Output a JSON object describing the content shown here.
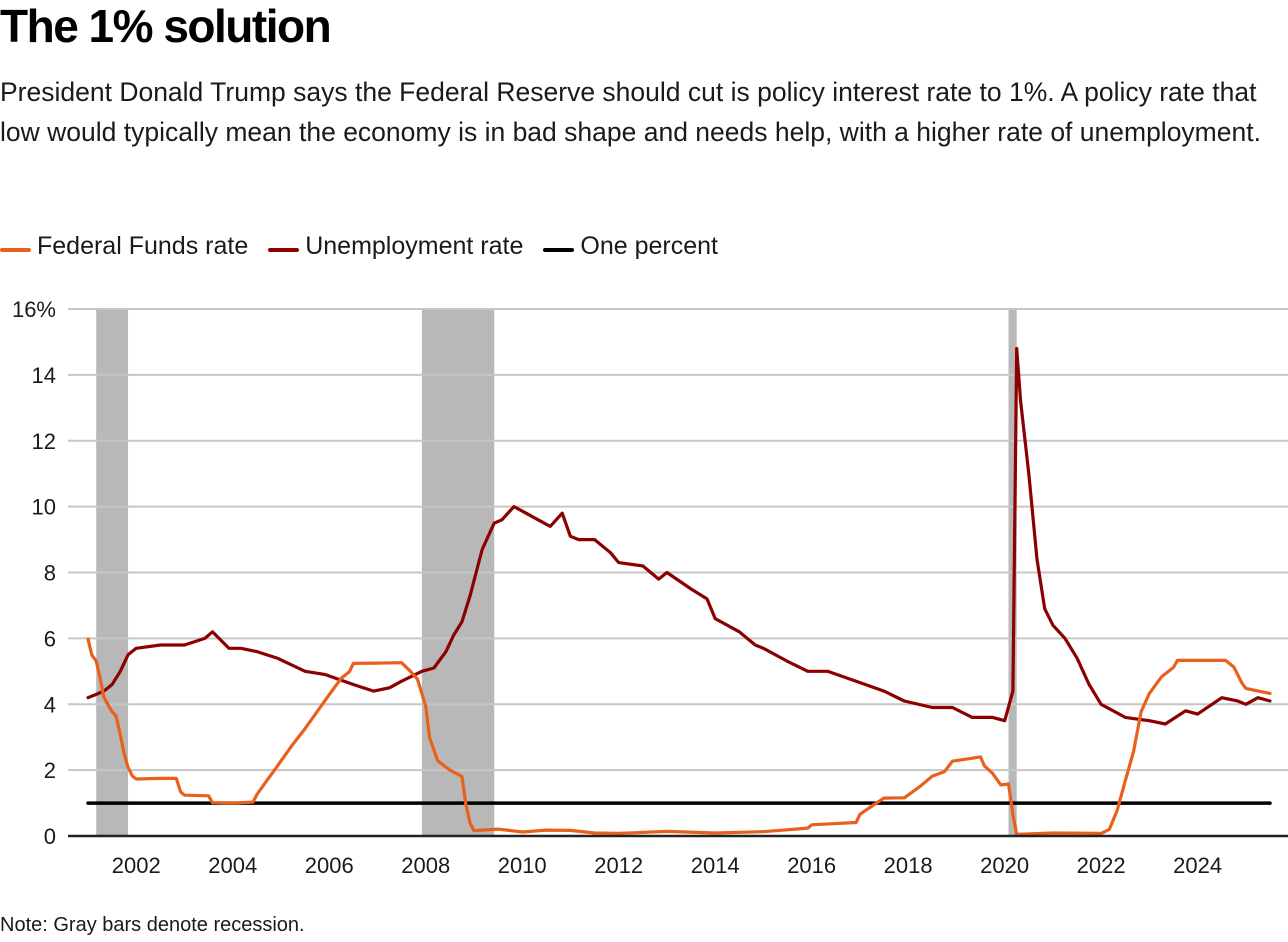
{
  "header": {
    "title": "The 1% solution",
    "subtitle": "President Donald Trump says the Federal Reserve should cut is policy interest rate to 1%. A policy rate that low would typically mean the economy is in bad shape and needs help, with a higher rate of unemployment."
  },
  "legend": [
    {
      "label": "Federal Funds rate",
      "color": "#e8601c"
    },
    {
      "label": "Unemployment rate",
      "color": "#8b0000"
    },
    {
      "label": "One percent",
      "color": "#000000"
    }
  ],
  "note": "Note: Gray bars denote recession.",
  "chart_data": {
    "type": "line",
    "title": "The 1% solution",
    "xlabel": "",
    "ylabel": "",
    "xlim": [
      2001.0,
      2025.5
    ],
    "ylim": [
      0,
      16
    ],
    "yticks": [
      0,
      2,
      4,
      6,
      8,
      10,
      12,
      14,
      16
    ],
    "ytick_labels": [
      "0",
      "2",
      "4",
      "6",
      "8",
      "10",
      "12",
      "14",
      "16%"
    ],
    "xticks": [
      2002,
      2004,
      2006,
      2008,
      2010,
      2012,
      2014,
      2016,
      2018,
      2020,
      2022,
      2024
    ],
    "xtick_labels": [
      "2002",
      "2004",
      "2006",
      "2008",
      "2010",
      "2012",
      "2014",
      "2016",
      "2018",
      "2020",
      "2022",
      "2024"
    ],
    "grid": true,
    "legend_position": "top-left",
    "recessions": [
      {
        "start": 2001.17,
        "end": 2001.83
      },
      {
        "start": 2007.92,
        "end": 2009.42
      },
      {
        "start": 2020.08,
        "end": 2020.25
      }
    ],
    "series": [
      {
        "name": "Federal Funds rate",
        "color": "#e8601c",
        "x": [
          2001.0,
          2001.08,
          2001.17,
          2001.25,
          2001.33,
          2001.42,
          2001.5,
          2001.58,
          2001.67,
          2001.75,
          2001.83,
          2001.92,
          2002.0,
          2002.5,
          2002.83,
          2002.92,
          2003.0,
          2003.5,
          2003.58,
          2004.0,
          2004.42,
          2004.5,
          2004.67,
          2004.83,
          2005.0,
          2005.25,
          2005.5,
          2005.75,
          2006.0,
          2006.25,
          2006.42,
          2006.5,
          2007.0,
          2007.5,
          2007.67,
          2007.83,
          2008.0,
          2008.08,
          2008.25,
          2008.5,
          2008.75,
          2008.83,
          2008.92,
          2009.0,
          2009.5,
          2010.0,
          2010.5,
          2011.0,
          2011.5,
          2012.0,
          2013.0,
          2014.0,
          2015.0,
          2015.92,
          2016.0,
          2016.92,
          2017.0,
          2017.25,
          2017.5,
          2017.92,
          2018.25,
          2018.5,
          2018.75,
          2018.92,
          2019.5,
          2019.58,
          2019.75,
          2019.92,
          2020.08,
          2020.17,
          2020.25,
          2021.0,
          2022.0,
          2022.17,
          2022.33,
          2022.5,
          2022.67,
          2022.83,
          2023.0,
          2023.25,
          2023.5,
          2023.58,
          2024.0,
          2024.58,
          2024.75,
          2024.92,
          2025.0,
          2025.5
        ],
        "values": [
          5.98,
          5.49,
          5.31,
          4.8,
          4.21,
          3.97,
          3.77,
          3.65,
          3.07,
          2.49,
          2.09,
          1.82,
          1.73,
          1.75,
          1.75,
          1.34,
          1.24,
          1.22,
          1.01,
          1.0,
          1.03,
          1.26,
          1.61,
          1.93,
          2.28,
          2.79,
          3.26,
          3.78,
          4.29,
          4.79,
          4.99,
          5.24,
          5.25,
          5.26,
          5.02,
          4.76,
          3.94,
          2.98,
          2.28,
          2.0,
          1.81,
          0.97,
          0.39,
          0.16,
          0.21,
          0.12,
          0.18,
          0.17,
          0.09,
          0.08,
          0.14,
          0.09,
          0.13,
          0.24,
          0.34,
          0.41,
          0.66,
          0.91,
          1.15,
          1.16,
          1.51,
          1.82,
          1.95,
          2.27,
          2.4,
          2.13,
          1.9,
          1.55,
          1.58,
          0.65,
          0.05,
          0.09,
          0.08,
          0.2,
          0.77,
          1.68,
          2.56,
          3.78,
          4.33,
          4.83,
          5.12,
          5.33,
          5.33,
          5.33,
          5.13,
          4.64,
          4.48,
          4.33
        ]
      },
      {
        "name": "Unemployment rate",
        "color": "#8b0000",
        "x": [
          2001.0,
          2001.17,
          2001.33,
          2001.5,
          2001.67,
          2001.83,
          2002.0,
          2002.5,
          2003.0,
          2003.42,
          2003.58,
          2003.92,
          2004.17,
          2004.5,
          2004.92,
          2005.5,
          2005.92,
          2006.5,
          2006.92,
          2007.25,
          2007.5,
          2007.92,
          2008.17,
          2008.42,
          2008.58,
          2008.75,
          2008.92,
          2009.17,
          2009.42,
          2009.58,
          2009.83,
          2010.08,
          2010.33,
          2010.58,
          2010.83,
          2011.0,
          2011.17,
          2011.5,
          2011.83,
          2012.0,
          2012.5,
          2012.83,
          2013.0,
          2013.5,
          2013.83,
          2014.0,
          2014.5,
          2014.83,
          2015.0,
          2015.5,
          2015.92,
          2016.33,
          2016.92,
          2017.5,
          2017.92,
          2018.5,
          2018.92,
          2019.33,
          2019.75,
          2020.0,
          2020.17,
          2020.25,
          2020.33,
          2020.5,
          2020.67,
          2020.83,
          2021.0,
          2021.25,
          2021.5,
          2021.75,
          2022.0,
          2022.5,
          2023.0,
          2023.33,
          2023.75,
          2024.0,
          2024.5,
          2024.83,
          2025.0,
          2025.25,
          2025.5
        ],
        "values": [
          4.2,
          4.3,
          4.4,
          4.6,
          5.0,
          5.5,
          5.7,
          5.8,
          5.8,
          6.0,
          6.2,
          5.7,
          5.7,
          5.6,
          5.4,
          5.0,
          4.9,
          4.6,
          4.4,
          4.5,
          4.7,
          5.0,
          5.1,
          5.6,
          6.1,
          6.5,
          7.3,
          8.7,
          9.5,
          9.6,
          10.0,
          9.8,
          9.6,
          9.4,
          9.8,
          9.1,
          9.0,
          9.0,
          8.6,
          8.3,
          8.2,
          7.8,
          8.0,
          7.5,
          7.2,
          6.6,
          6.2,
          5.8,
          5.7,
          5.3,
          5.0,
          5.0,
          4.7,
          4.4,
          4.1,
          3.9,
          3.9,
          3.6,
          3.6,
          3.5,
          4.4,
          14.8,
          13.2,
          11.0,
          8.4,
          6.9,
          6.4,
          6.0,
          5.4,
          4.6,
          4.0,
          3.6,
          3.5,
          3.4,
          3.8,
          3.7,
          4.2,
          4.1,
          4.0,
          4.2,
          4.1
        ]
      },
      {
        "name": "One percent",
        "color": "#000000",
        "x": [
          2001.0,
          2025.5
        ],
        "values": [
          1,
          1
        ]
      }
    ]
  }
}
